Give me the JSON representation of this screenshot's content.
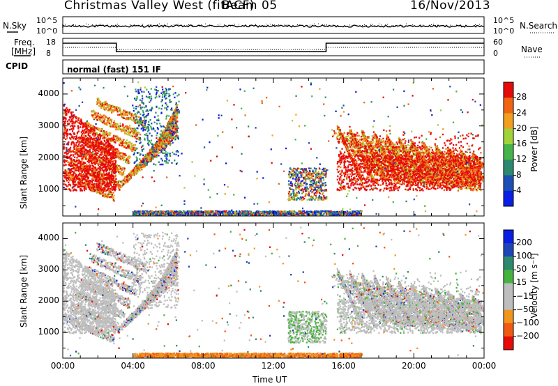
{
  "header": {
    "title": "Christmas Valley West (fitACF)",
    "beam": "Beam 05",
    "date": "16/Nov/2013"
  },
  "strips": {
    "nsky_label": "N.Sky",
    "nsearch_label": "N.Search",
    "noise_ticks": [
      "10^5",
      "10^0"
    ],
    "freq_label_1": "Freq.",
    "freq_label_2": "[MHz]",
    "freq_ticks": [
      "18",
      "8"
    ],
    "nave_label": "Nave",
    "nave_ticks": [
      "60",
      "0"
    ],
    "cpid_label": "CPID",
    "cpid_text": "normal (fast) 151 IF"
  },
  "colors": {
    "power": [
      "#0a1ee6",
      "#1e50b4",
      "#2d8a6e",
      "#46b44b",
      "#a0d23c",
      "#f0a01e",
      "#f06414",
      "#e60a0a"
    ],
    "velocity": [
      "#e60a0a",
      "#f05a14",
      "#f0961e",
      "#bebebe",
      "#bebebe",
      "#46b43c",
      "#2d8a6e",
      "#1e46b4",
      "#0a1ee6"
    ]
  },
  "chart_data": [
    {
      "type": "heatmap",
      "quantity": "power",
      "xlabel": "",
      "ylabel": "Slant Range [km]",
      "colorbar_label": "Power [dB]",
      "colorbar_ticks": [
        "28",
        "24",
        "20",
        "16",
        "12",
        "8",
        "4"
      ],
      "colorbar_range": [
        0,
        32
      ],
      "xlim": [
        0,
        24
      ],
      "ylim": [
        180,
        4500
      ],
      "y_ticks": [
        "4000",
        "3000",
        "2000",
        "1000"
      ],
      "y_tick_values": [
        4000,
        3000,
        2000,
        1000
      ]
    },
    {
      "type": "heatmap",
      "quantity": "velocity",
      "xlabel": "Time UT",
      "ylabel": "Slant Range [km]",
      "colorbar_label": "Velocity [m s⁻¹]",
      "colorbar_ticks": [
        "200",
        "100",
        "50",
        "15",
        "−15",
        "−50",
        "−100",
        "−200"
      ],
      "xlim": [
        0,
        24
      ],
      "ylim": [
        180,
        4500
      ],
      "x_ticks": [
        "00:00",
        "04:00",
        "08:00",
        "12:00",
        "16:00",
        "20:00",
        "00:00"
      ],
      "x_tick_values": [
        0,
        4,
        8,
        12,
        16,
        20,
        24
      ],
      "y_ticks": [
        "4000",
        "3000",
        "2000",
        "1000"
      ],
      "y_tick_values": [
        4000,
        3000,
        2000,
        1000
      ]
    }
  ]
}
